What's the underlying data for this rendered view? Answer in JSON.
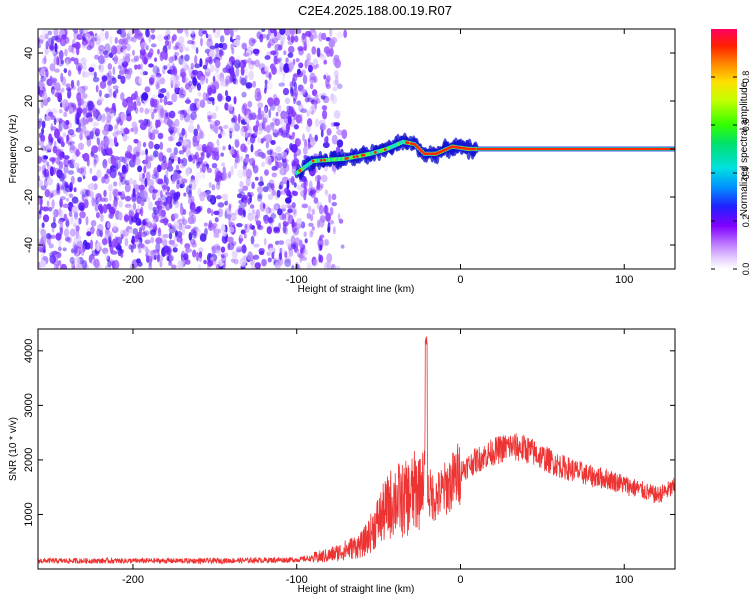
{
  "title": "C2E4.2025.188.00.19.R07",
  "chart_data": [
    {
      "type": "heatmap",
      "xlabel": "Height of straight line (km)",
      "ylabel": "Frequency (Hz)",
      "xlim": [
        -258,
        131
      ],
      "ylim": [
        -50,
        50
      ],
      "xticks": [
        -200,
        -100,
        0,
        100
      ],
      "yticks": [
        -40,
        -20,
        0,
        20,
        40
      ],
      "colorbar": {
        "label": "Normalized spectral amplitude",
        "range": [
          0,
          1
        ],
        "ticks": [
          0.0,
          0.2,
          0.4,
          0.6,
          0.8
        ]
      },
      "line_trace": [
        {
          "x": -100,
          "y": -10
        },
        {
          "x": -90,
          "y": -5
        },
        {
          "x": -70,
          "y": -4
        },
        {
          "x": -55,
          "y": -2
        },
        {
          "x": -45,
          "y": 0
        },
        {
          "x": -35,
          "y": 3
        },
        {
          "x": -28,
          "y": 2
        },
        {
          "x": -22,
          "y": -2
        },
        {
          "x": -15,
          "y": -2
        },
        {
          "x": -5,
          "y": 1
        },
        {
          "x": 5,
          "y": 0
        },
        {
          "x": 131,
          "y": 0
        }
      ],
      "colors": {
        "noise": "#7b2cff",
        "peak": "#ff2a00"
      }
    },
    {
      "type": "line",
      "xlabel": "Height of straight line (km)",
      "ylabel": "SNR (10 * v/v)",
      "xlim": [
        -258,
        131
      ],
      "ylim": [
        0,
        4400
      ],
      "xticks": [
        -200,
        -100,
        0,
        100
      ],
      "yticks": [
        1000,
        2000,
        3000,
        4000
      ],
      "series": [
        {
          "color": "#ee3333",
          "x": [
            -258,
            -200,
            -150,
            -100,
            -90,
            -80,
            -70,
            -60,
            -55,
            -50,
            -45,
            -40,
            -35,
            -30,
            -25,
            -22,
            -21,
            -20,
            -15,
            -10,
            -5,
            0,
            10,
            20,
            30,
            40,
            50,
            60,
            70,
            80,
            90,
            100,
            110,
            120,
            131
          ],
          "y": [
            150,
            150,
            150,
            170,
            200,
            250,
            350,
            450,
            650,
            900,
            1100,
            1300,
            1250,
            1350,
            1500,
            1700,
            4300,
            1400,
            1300,
            1450,
            1600,
            1800,
            2000,
            2150,
            2250,
            2200,
            2050,
            1900,
            1800,
            1700,
            1650,
            1550,
            1450,
            1350,
            1500
          ]
        }
      ]
    }
  ]
}
